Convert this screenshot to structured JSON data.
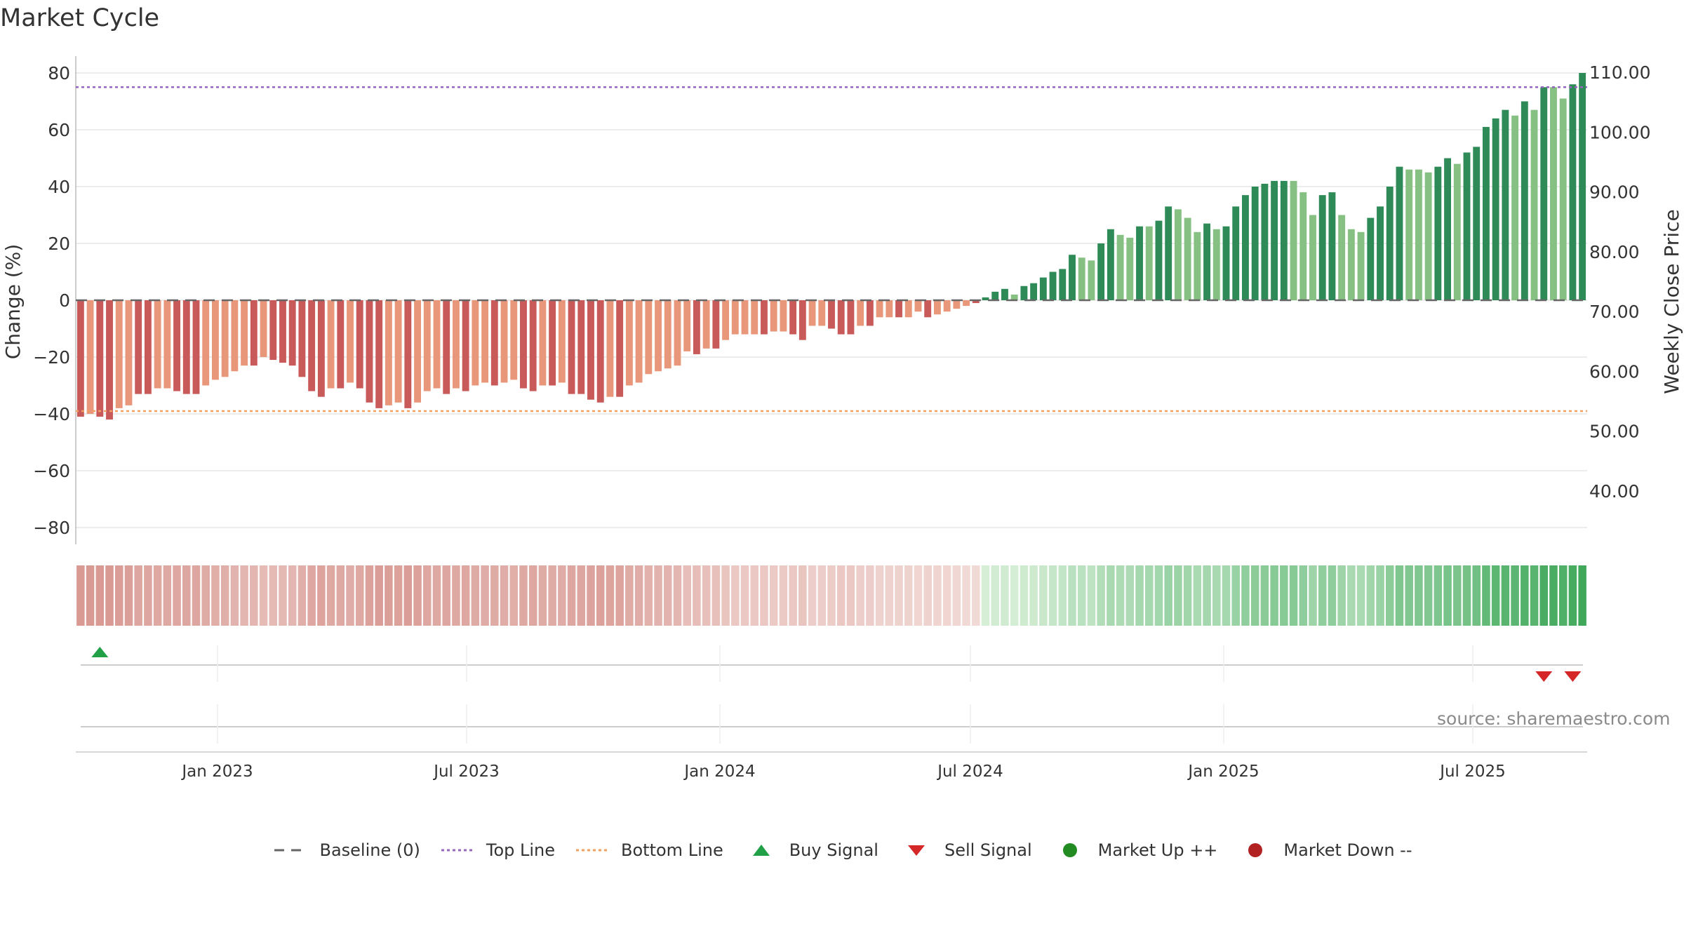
{
  "title": "Market Cycle",
  "source": "source: sharemaestro.com",
  "colors": {
    "down_dark": "#c95a5a",
    "down_light": "#e8977a",
    "up_dark": "#2e8b57",
    "up_light": "#86c083",
    "top_line": "#9467bd",
    "bottom_line": "#f0a060",
    "baseline": "#666666",
    "buy": "#22a047",
    "sell": "#d62728",
    "market_up": "#228b22",
    "market_down": "#b22222"
  },
  "chart_data": {
    "type": "bar",
    "left_axis": {
      "label": "Change (%)",
      "ticks": [
        80,
        60,
        40,
        20,
        0,
        -20,
        -40,
        -60,
        -80
      ],
      "range": [
        -85,
        85
      ]
    },
    "right_axis": {
      "label": "Weekly Close Price",
      "ticks": [
        "110.00",
        "100.00",
        "90.00",
        "80.00",
        "70.00",
        "60.00",
        "50.00",
        "40.00"
      ],
      "tick_values": [
        110,
        100,
        90,
        80,
        70,
        60,
        50,
        40
      ]
    },
    "x_axis": {
      "ticks": [
        "Jan 2023",
        "Jul 2023",
        "Jan 2024",
        "Jul 2024",
        "Jan 2025",
        "Jul 2025"
      ]
    },
    "top_line": 75,
    "bottom_line": -39,
    "baseline": 0,
    "values": [
      -41,
      -40,
      -41,
      -42,
      -38,
      -37,
      -33,
      -33,
      -31,
      -31,
      -32,
      -33,
      -33,
      -30,
      -28,
      -27,
      -25,
      -23,
      -23,
      -20,
      -21,
      -22,
      -23,
      -27,
      -32,
      -34,
      -31,
      -31,
      -29,
      -31,
      -36,
      -38,
      -37,
      -36,
      -38,
      -36,
      -32,
      -31,
      -33,
      -31,
      -32,
      -30,
      -29,
      -30,
      -29,
      -28,
      -31,
      -32,
      -30,
      -30,
      -29,
      -33,
      -33,
      -35,
      -36,
      -34,
      -34,
      -30,
      -29,
      -26,
      -25,
      -24,
      -23,
      -18,
      -19,
      -17,
      -17,
      -14,
      -12,
      -12,
      -12,
      -12,
      -11,
      -11,
      -12,
      -14,
      -9,
      -9,
      -10,
      -12,
      -12,
      -9,
      -9,
      -6,
      -6,
      -6,
      -6,
      -4,
      -6,
      -5,
      -4,
      -3,
      -2,
      -1,
      1,
      3,
      4,
      2,
      5,
      6,
      8,
      10,
      11,
      16,
      15,
      14,
      20,
      25,
      23,
      22,
      26,
      26,
      28,
      33,
      32,
      29,
      24,
      27,
      25,
      26,
      33,
      37,
      40,
      41,
      42,
      42,
      42,
      38,
      30,
      37,
      38,
      30,
      25,
      24,
      29,
      33,
      40,
      47,
      46,
      46,
      45,
      47,
      50,
      48,
      52,
      54,
      61,
      64,
      67,
      65,
      70,
      67,
      75,
      75,
      71,
      76,
      80
    ],
    "styles": [
      "d",
      "l",
      "d",
      "d",
      "l",
      "l",
      "d",
      "d",
      "l",
      "l",
      "d",
      "d",
      "d",
      "l",
      "l",
      "l",
      "l",
      "l",
      "d",
      "l",
      "d",
      "d",
      "d",
      "d",
      "d",
      "d",
      "l",
      "d",
      "l",
      "d",
      "d",
      "d",
      "l",
      "l",
      "d",
      "l",
      "l",
      "l",
      "d",
      "l",
      "d",
      "l",
      "l",
      "d",
      "l",
      "l",
      "d",
      "d",
      "l",
      "d",
      "l",
      "d",
      "d",
      "d",
      "d",
      "l",
      "d",
      "l",
      "l",
      "l",
      "l",
      "l",
      "l",
      "l",
      "d",
      "l",
      "d",
      "l",
      "l",
      "l",
      "l",
      "d",
      "l",
      "l",
      "d",
      "d",
      "l",
      "l",
      "d",
      "d",
      "d",
      "l",
      "d",
      "l",
      "l",
      "d",
      "l",
      "l",
      "d",
      "l",
      "l",
      "l",
      "l",
      "d",
      "d",
      "d",
      "d",
      "l",
      "d",
      "d",
      "d",
      "d",
      "d",
      "d",
      "l",
      "l",
      "d",
      "d",
      "l",
      "l",
      "d",
      "l",
      "d",
      "d",
      "l",
      "l",
      "l",
      "d",
      "l",
      "d",
      "d",
      "d",
      "d",
      "d",
      "d",
      "d",
      "l",
      "l",
      "l",
      "d",
      "d",
      "l",
      "l",
      "l",
      "d",
      "d",
      "d",
      "d",
      "l",
      "l",
      "l",
      "d",
      "d",
      "l",
      "d",
      "d",
      "d",
      "d",
      "d",
      "l",
      "d",
      "l",
      "d",
      "l",
      "l",
      "d",
      "d"
    ],
    "buy_signals": [
      2
    ],
    "sell_signals": [
      152,
      155
    ]
  },
  "legend": [
    {
      "label": "Baseline (0)",
      "symbol": "dash-gray"
    },
    {
      "label": "Top Line",
      "symbol": "dots-purple"
    },
    {
      "label": "Bottom Line",
      "symbol": "dots-orange"
    },
    {
      "label": "Buy Signal",
      "symbol": "triangle-up-green"
    },
    {
      "label": "Sell Signal",
      "symbol": "triangle-down-red"
    },
    {
      "label": "Market Up ++",
      "symbol": "circle-green"
    },
    {
      "label": "Market Down --",
      "symbol": "circle-red"
    }
  ]
}
